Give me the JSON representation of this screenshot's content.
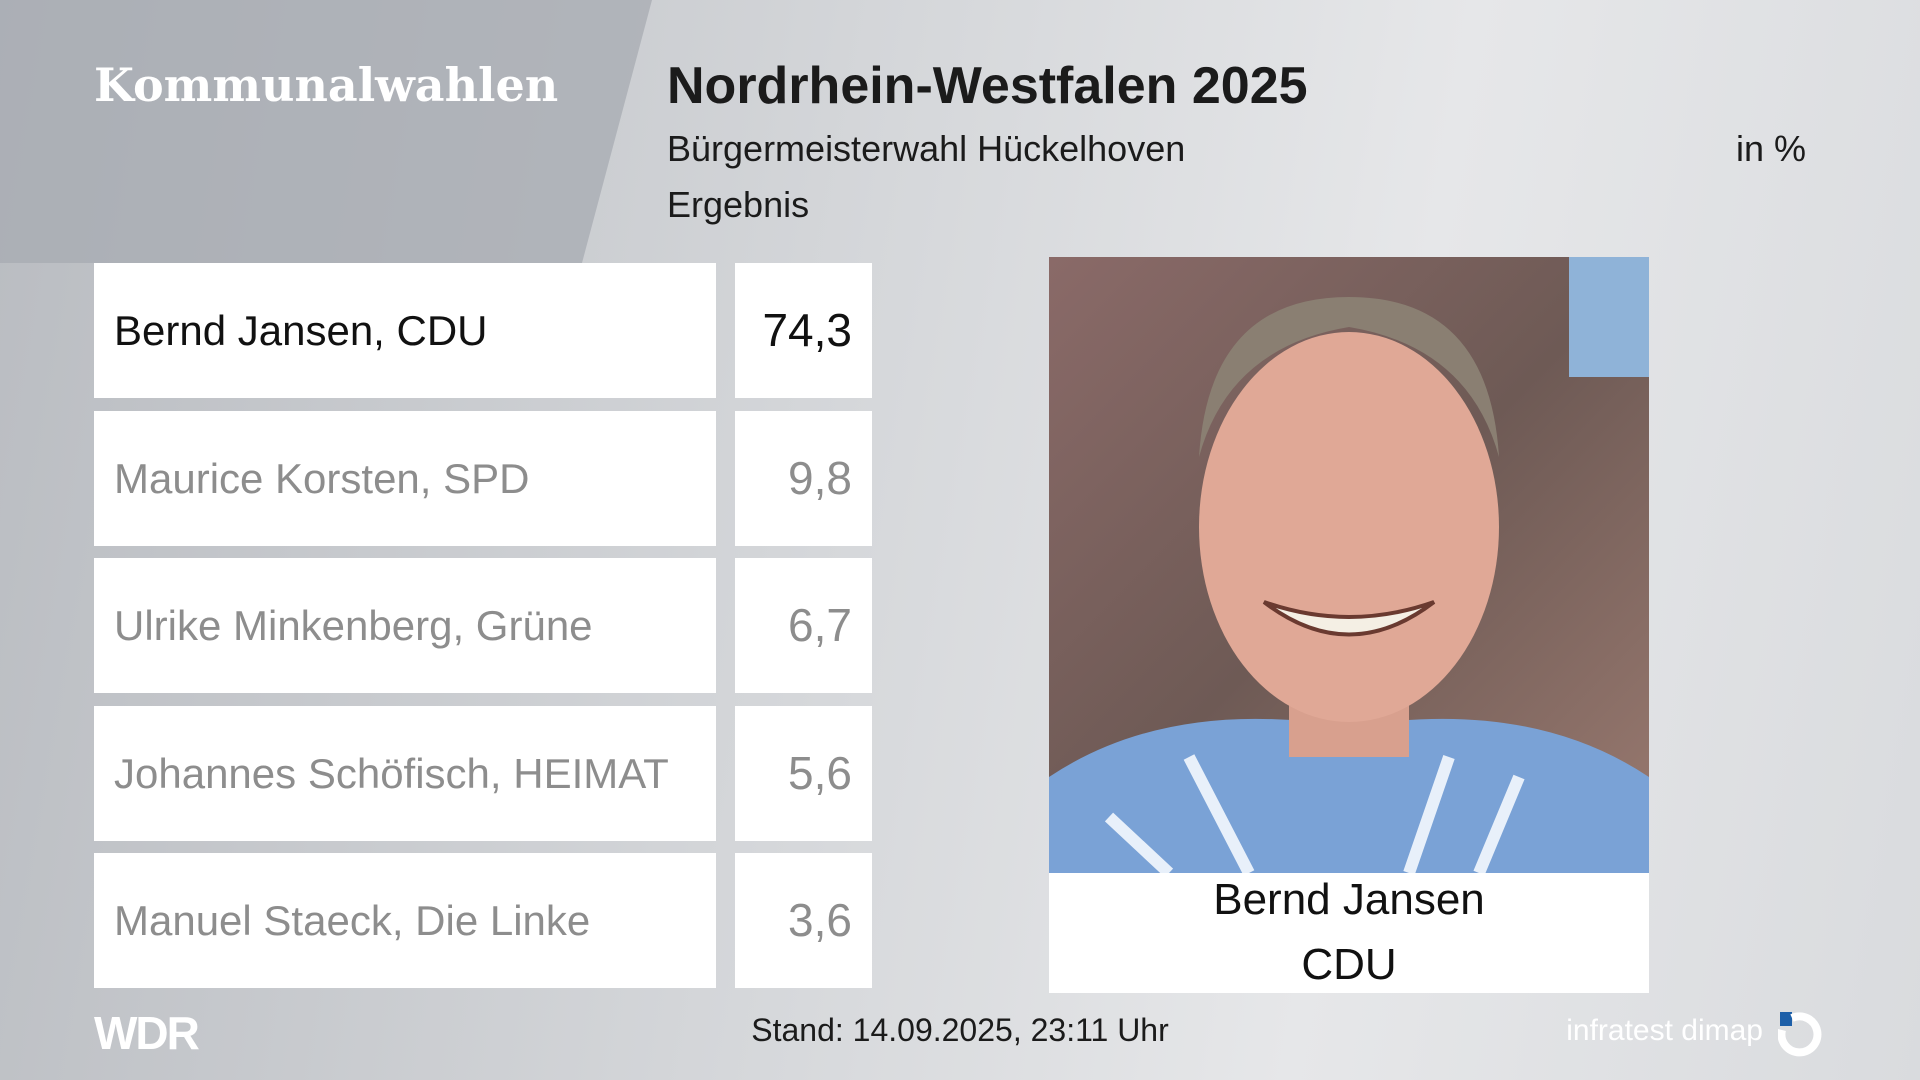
{
  "header": {
    "section": "Kommunalwahlen",
    "title": "Nordrhein-Westfalen 2025",
    "subtitle": "Bürgermeisterwahl Hückelhoven",
    "unit": "in %",
    "label": "Ergebnis"
  },
  "table": {
    "rows": [
      [
        "Bernd Jansen, CDU",
        "74,3"
      ],
      [
        "Maurice Korsten, SPD",
        "9,8"
      ],
      [
        "Ulrike Minkenberg, Grüne",
        "6,7"
      ],
      [
        "Johannes Schöfisch, HEIMAT",
        "5,6"
      ],
      [
        "Manuel Staeck, Die Linke",
        "3,6"
      ]
    ]
  },
  "photo": {
    "name": "Bernd Jansen",
    "party": "CDU"
  },
  "footer": {
    "broadcaster": "WDR",
    "timestamp": "Stand: 14.09.2025, 23:11 Uhr",
    "source": "infratest dimap"
  }
}
